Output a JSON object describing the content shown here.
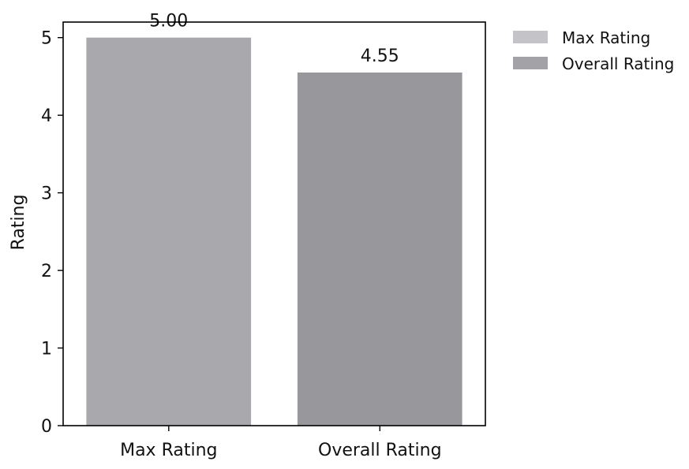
{
  "chart_data": {
    "type": "bar",
    "title": "",
    "xlabel": "",
    "ylabel": "Rating",
    "categories": [
      "Max Rating",
      "Overall Rating"
    ],
    "values": [
      5.0,
      4.55
    ],
    "data_labels": [
      "5.00",
      "4.55"
    ],
    "ylim": [
      0,
      5.2
    ],
    "yticks": [
      0,
      1,
      2,
      3,
      4,
      5
    ],
    "ytick_labels": [
      "0",
      "1",
      "2",
      "3",
      "4",
      "5"
    ],
    "bar_colors": [
      "#a9a9ad",
      "#98989c"
    ],
    "legend": {
      "placement": "outside upper right",
      "entries": [
        {
          "label": "Max Rating",
          "color": "#c4c4c8"
        },
        {
          "label": "Overall Rating",
          "color": "#a3a3a7"
        }
      ]
    },
    "grid": false
  }
}
